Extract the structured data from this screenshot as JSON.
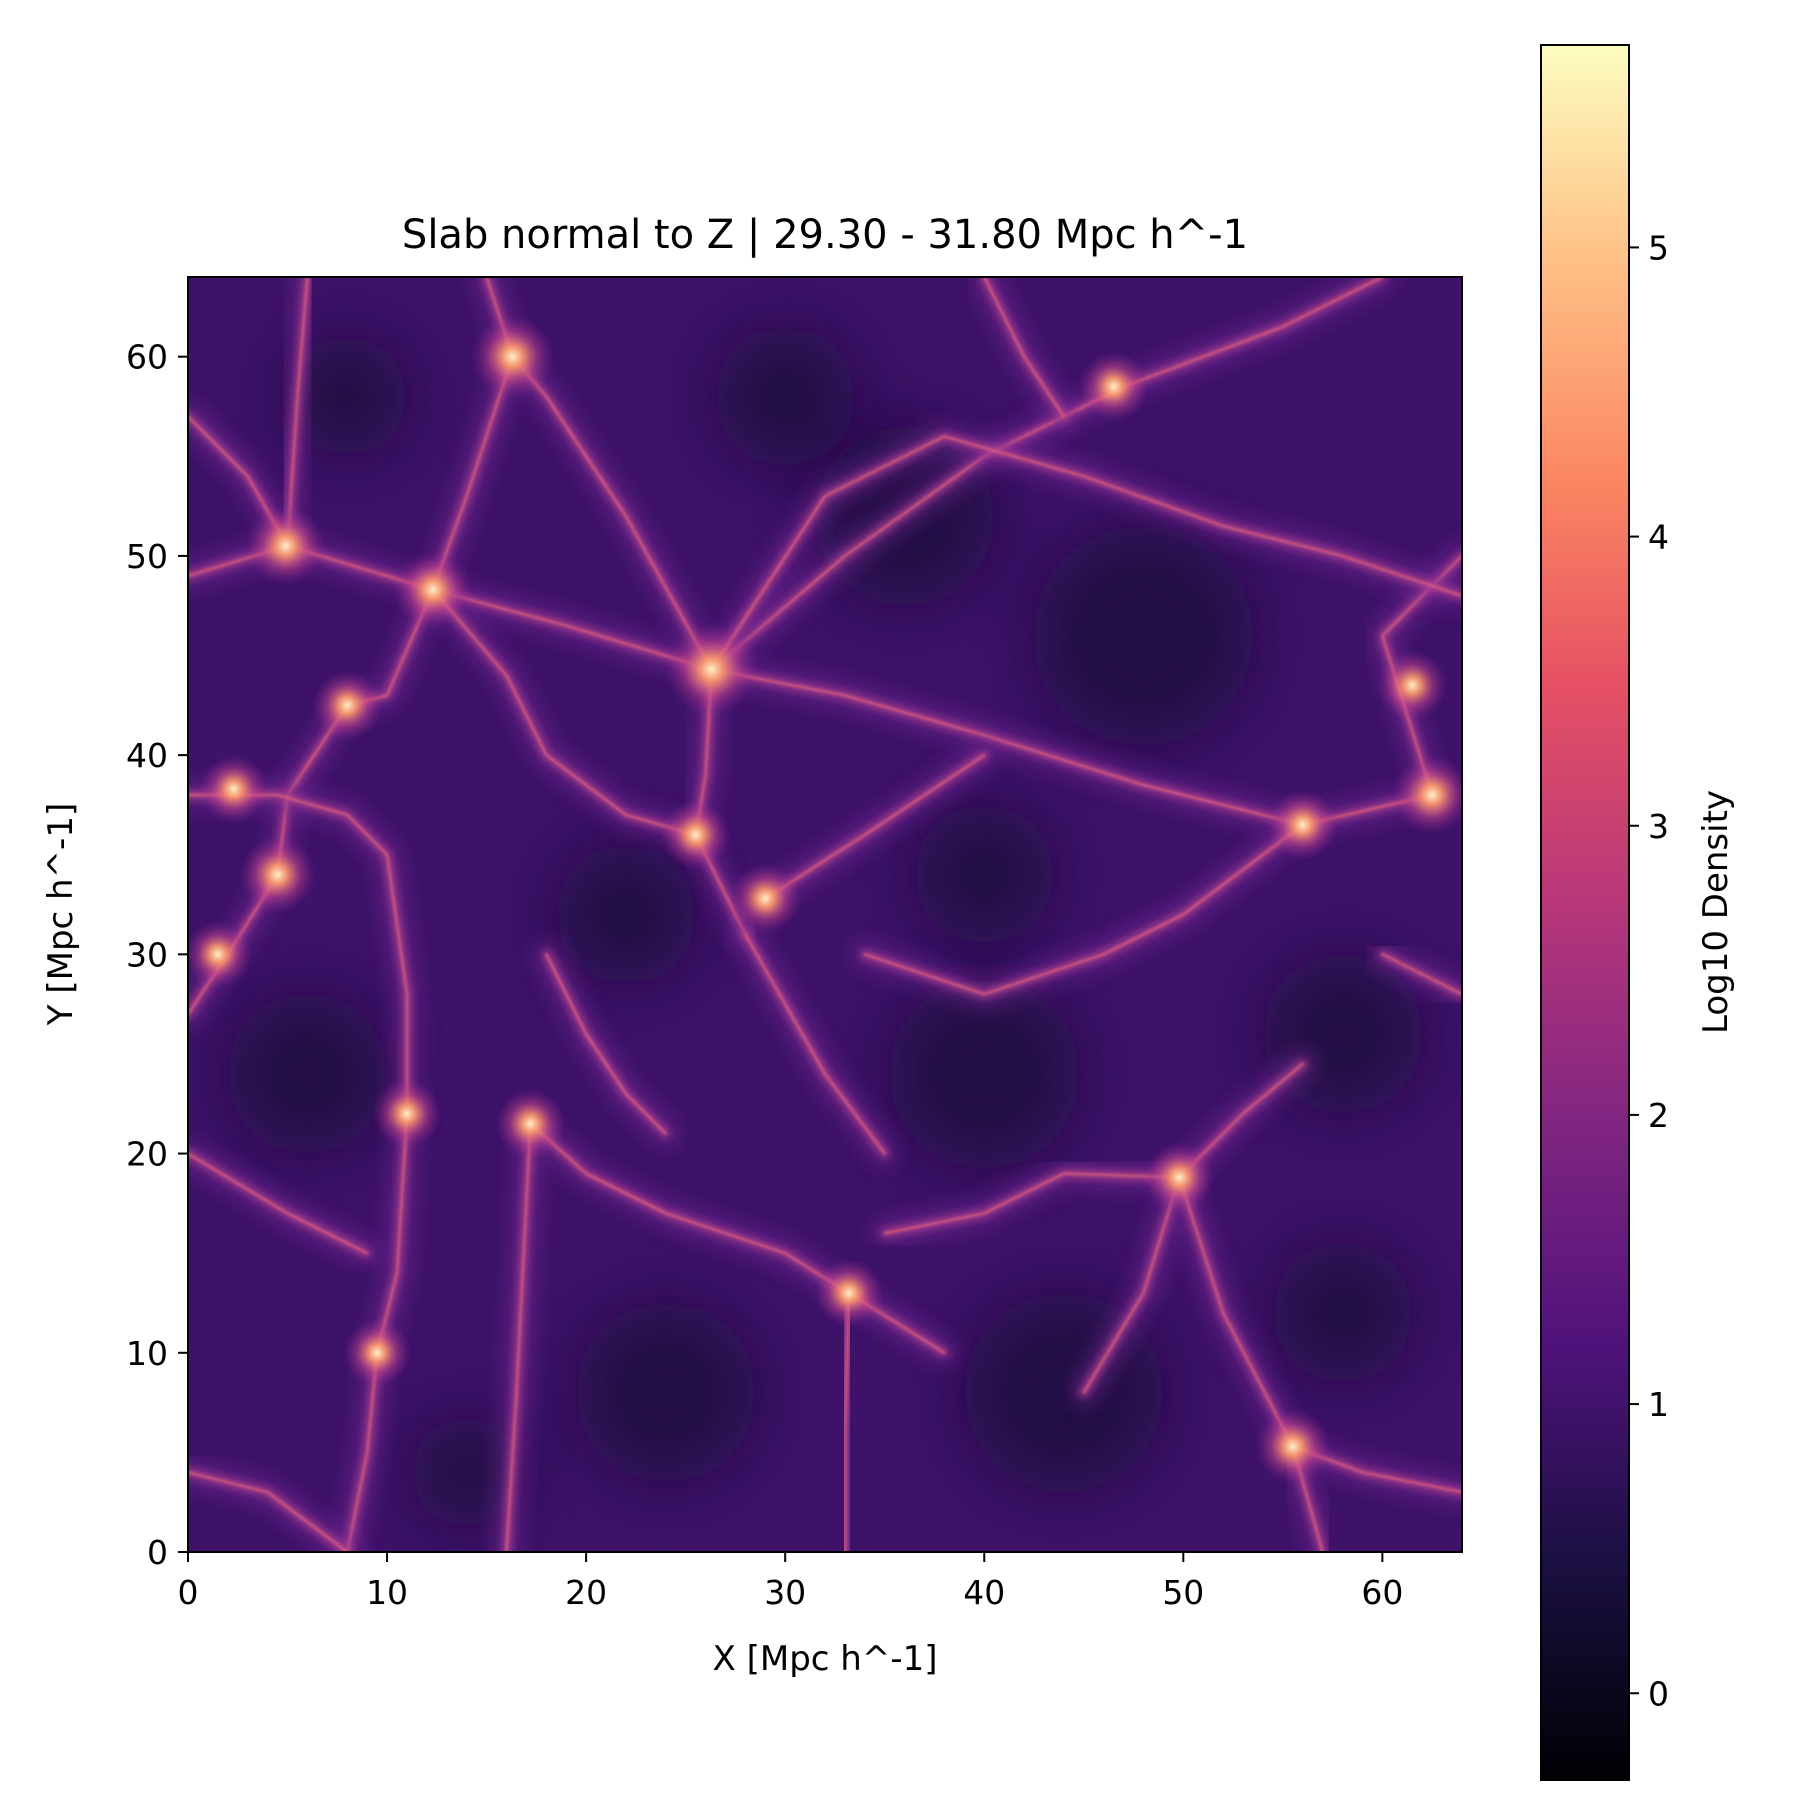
{
  "chart_data": {
    "type": "heatmap",
    "title": "Slab normal to Z | 29.30 - 31.80 Mpc h^-1",
    "xlabel": "X [Mpc h^-1]",
    "ylabel": "Y [Mpc h^-1]",
    "xlim": [
      0,
      64
    ],
    "ylim": [
      0,
      64
    ],
    "xticks": [
      0,
      10,
      20,
      30,
      40,
      50,
      60
    ],
    "yticks": [
      0,
      10,
      20,
      30,
      40,
      50,
      60
    ],
    "xtick_labels": [
      "0",
      "10",
      "20",
      "30",
      "40",
      "50",
      "60"
    ],
    "ytick_labels": [
      "0",
      "10",
      "20",
      "30",
      "40",
      "50",
      "60"
    ],
    "colormap": "magma",
    "colorbar": {
      "label": "Log10 Density",
      "range": [
        -0.3,
        5.7
      ],
      "ticks": [
        0,
        1,
        2,
        3,
        4,
        5
      ],
      "tick_labels": [
        "0",
        "1",
        "2",
        "3",
        "4",
        "5"
      ]
    },
    "nodes": [
      {
        "x": 26.3,
        "y": 44.3,
        "value": 5.2
      },
      {
        "x": 16.3,
        "y": 60.0,
        "value": 4.5
      },
      {
        "x": 4.9,
        "y": 50.5,
        "value": 4.2
      },
      {
        "x": 12.3,
        "y": 48.3,
        "value": 4.1
      },
      {
        "x": 4.5,
        "y": 34.0,
        "value": 4.0
      },
      {
        "x": 62.5,
        "y": 38.0,
        "value": 4.2
      },
      {
        "x": 55.5,
        "y": 5.3,
        "value": 3.9
      },
      {
        "x": 49.8,
        "y": 18.8,
        "value": 3.6
      },
      {
        "x": 33.2,
        "y": 13.0,
        "value": 3.4
      },
      {
        "x": 29.0,
        "y": 32.8,
        "value": 3.6
      },
      {
        "x": 25.5,
        "y": 36.0,
        "value": 3.5
      },
      {
        "x": 17.2,
        "y": 21.5,
        "value": 3.5
      },
      {
        "x": 11.0,
        "y": 22.0,
        "value": 3.4
      },
      {
        "x": 9.5,
        "y": 10.0,
        "value": 3.3
      },
      {
        "x": 56.0,
        "y": 36.5,
        "value": 3.6
      },
      {
        "x": 46.5,
        "y": 58.5,
        "value": 3.5
      },
      {
        "x": 61.5,
        "y": 43.5,
        "value": 3.5
      },
      {
        "x": 2.3,
        "y": 38.3,
        "value": 3.4
      },
      {
        "x": 8.0,
        "y": 42.5,
        "value": 3.5
      },
      {
        "x": 1.5,
        "y": 30.0,
        "value": 3.3
      }
    ],
    "filaments": [
      [
        [
          0,
          49
        ],
        [
          5,
          50.5
        ],
        [
          12.3,
          48.3
        ],
        [
          19,
          46.5
        ],
        [
          26.3,
          44.3
        ]
      ],
      [
        [
          26.3,
          44.3
        ],
        [
          33,
          43
        ],
        [
          40,
          41
        ],
        [
          48,
          38.5
        ],
        [
          56,
          36.5
        ],
        [
          62.5,
          38
        ]
      ],
      [
        [
          26.3,
          44.3
        ],
        [
          33,
          50
        ],
        [
          40,
          55
        ],
        [
          47,
          58.5
        ],
        [
          55,
          61.5
        ],
        [
          60,
          64
        ]
      ],
      [
        [
          26.3,
          44.3
        ],
        [
          22,
          52
        ],
        [
          18,
          58
        ],
        [
          16.3,
          60
        ],
        [
          15,
          64
        ]
      ],
      [
        [
          16.3,
          60
        ],
        [
          14,
          53
        ],
        [
          12.3,
          48.3
        ]
      ],
      [
        [
          26.3,
          44.3
        ],
        [
          26,
          39
        ],
        [
          25.5,
          36
        ],
        [
          28,
          31
        ]
      ],
      [
        [
          28,
          31
        ],
        [
          32,
          24
        ],
        [
          35,
          20
        ]
      ],
      [
        [
          5,
          50.5
        ],
        [
          5.5,
          58
        ],
        [
          6,
          64
        ]
      ],
      [
        [
          5,
          50.5
        ],
        [
          3,
          54
        ],
        [
          0,
          57
        ]
      ],
      [
        [
          12.3,
          48.3
        ],
        [
          10,
          43
        ],
        [
          8,
          42.5
        ],
        [
          5,
          38
        ],
        [
          4.5,
          34
        ],
        [
          2,
          30
        ],
        [
          0,
          27
        ]
      ],
      [
        [
          0,
          38
        ],
        [
          4.5,
          38
        ],
        [
          8,
          37
        ],
        [
          10,
          35
        ],
        [
          11,
          28
        ],
        [
          11,
          22
        ],
        [
          10.5,
          14
        ],
        [
          9.5,
          10
        ],
        [
          9,
          5
        ],
        [
          8,
          0
        ]
      ],
      [
        [
          62.5,
          38
        ],
        [
          60,
          46
        ],
        [
          64,
          50
        ]
      ],
      [
        [
          64,
          48
        ],
        [
          58,
          50
        ],
        [
          52,
          51.5
        ],
        [
          45,
          54
        ],
        [
          38,
          56
        ],
        [
          32,
          53
        ],
        [
          26.3,
          44.3
        ]
      ],
      [
        [
          16,
          0
        ],
        [
          16.5,
          8
        ],
        [
          17.2,
          21.5
        ],
        [
          20,
          19
        ],
        [
          24,
          17
        ],
        [
          30,
          15
        ],
        [
          33.2,
          13
        ],
        [
          38,
          10
        ]
      ],
      [
        [
          33.2,
          13
        ],
        [
          33,
          6
        ],
        [
          33,
          0
        ]
      ],
      [
        [
          49.8,
          18.8
        ],
        [
          48,
          13
        ],
        [
          45,
          8
        ]
      ],
      [
        [
          49.8,
          18.8
        ],
        [
          53,
          22
        ],
        [
          56,
          24.5
        ]
      ],
      [
        [
          49.8,
          18.8
        ],
        [
          44,
          19
        ],
        [
          40,
          17
        ],
        [
          35,
          16
        ]
      ],
      [
        [
          49.8,
          18.8
        ],
        [
          52,
          12
        ],
        [
          55.5,
          5.3
        ],
        [
          59,
          4
        ],
        [
          64,
          3
        ]
      ],
      [
        [
          55.5,
          5.3
        ],
        [
          57,
          0
        ]
      ],
      [
        [
          0,
          4
        ],
        [
          4,
          3
        ],
        [
          8,
          0
        ]
      ],
      [
        [
          12.3,
          48.3
        ],
        [
          16,
          44
        ],
        [
          18,
          40
        ],
        [
          22,
          37
        ],
        [
          25.5,
          36
        ]
      ],
      [
        [
          29,
          32.8
        ],
        [
          34,
          36
        ],
        [
          40,
          40
        ]
      ],
      [
        [
          0,
          20
        ],
        [
          5,
          17
        ],
        [
          9,
          15
        ]
      ],
      [
        [
          18,
          30
        ],
        [
          20,
          26
        ],
        [
          22,
          23
        ],
        [
          24,
          21
        ]
      ],
      [
        [
          34,
          30
        ],
        [
          40,
          28
        ],
        [
          46,
          30
        ],
        [
          50,
          32
        ],
        [
          56,
          36.5
        ]
      ],
      [
        [
          60,
          30
        ],
        [
          64,
          28
        ]
      ],
      [
        [
          40,
          64
        ],
        [
          42,
          60
        ],
        [
          44,
          57
        ]
      ]
    ]
  }
}
